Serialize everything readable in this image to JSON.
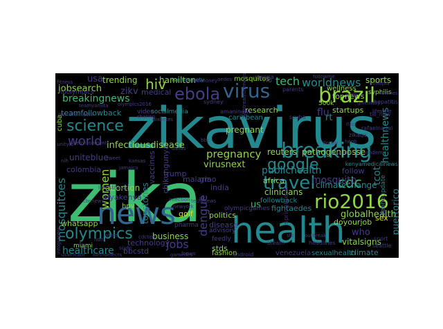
{
  "word_cloud": {
    "background": "#000000",
    "palette": {
      "green": "#3ebc74",
      "teal": "#23898e",
      "lime": "#8fd744",
      "yellow": "#dde318",
      "blue": "#31658e",
      "purple": "#433e85",
      "violet": "#482374"
    },
    "words": [
      {
        "text": "zikavirus",
        "color": "teal"
      },
      {
        "text": "zika",
        "color": "green"
      },
      {
        "text": "health",
        "color": "teal"
      },
      {
        "text": "news",
        "color": "blue"
      },
      {
        "text": "women",
        "color": "lime"
      },
      {
        "text": "brazil",
        "color": "lime"
      },
      {
        "text": "virus",
        "color": "blue"
      },
      {
        "text": "breaking",
        "color": "teal"
      },
      {
        "text": "rio2016",
        "color": "lime"
      },
      {
        "text": "travel",
        "color": "teal"
      },
      {
        "text": "ebola",
        "color": "purple"
      },
      {
        "text": "science",
        "color": "teal"
      },
      {
        "text": "olympics",
        "color": "teal"
      },
      {
        "text": "google",
        "color": "teal"
      },
      {
        "text": "mosquitoes",
        "color": "teal"
      },
      {
        "text": "hiv",
        "color": "lime"
      },
      {
        "text": "cdc",
        "color": "green"
      },
      {
        "text": "world",
        "color": "purple"
      },
      {
        "text": "publichealth",
        "color": "teal"
      },
      {
        "text": "jobs",
        "color": "purple"
      },
      {
        "text": "dengue",
        "color": "purple"
      },
      {
        "text": "tech",
        "color": "green"
      },
      {
        "text": "worldnews",
        "color": "teal"
      },
      {
        "text": "breakingnews",
        "color": "green"
      },
      {
        "text": "pregnancy",
        "color": "lime"
      },
      {
        "text": "mosquito",
        "color": "purple"
      },
      {
        "text": "healthcare",
        "color": "teal"
      },
      {
        "text": "infectiousdisease",
        "color": "lime"
      },
      {
        "text": "virusnext",
        "color": "lime"
      },
      {
        "text": "tcot",
        "color": "teal"
      },
      {
        "text": "globalhealth",
        "color": "lime"
      },
      {
        "text": "usa",
        "color": "purple"
      },
      {
        "text": "trending",
        "color": "lime"
      },
      {
        "text": "hamilton",
        "color": "lime"
      },
      {
        "text": "sports",
        "color": "lime"
      },
      {
        "text": "jobsearch",
        "color": "lime"
      },
      {
        "text": "zikv",
        "color": "purple"
      },
      {
        "text": "medical",
        "color": "purple"
      },
      {
        "text": "teamfollowback",
        "color": "teal"
      },
      {
        "text": "reuters",
        "color": "lime"
      },
      {
        "text": "pathogenposse",
        "color": "lime"
      },
      {
        "text": "flu",
        "color": "purple"
      },
      {
        "text": "pregnant",
        "color": "lime"
      },
      {
        "text": "research",
        "color": "lime"
      },
      {
        "text": "topnews",
        "color": "lime"
      },
      {
        "text": "startups",
        "color": "lime"
      },
      {
        "text": "healthnews",
        "color": "teal"
      },
      {
        "text": "unitebluе",
        "color": "purple"
      },
      {
        "text": "colombia",
        "color": "purple"
      },
      {
        "text": "vaccines",
        "color": "purple"
      },
      {
        "text": "chikungunya",
        "color": "purple"
      },
      {
        "text": "malaria",
        "color": "purple"
      },
      {
        "text": "africa",
        "color": "lime"
      },
      {
        "text": "clinicians",
        "color": "lime"
      },
      {
        "text": "climatechange",
        "color": "teal"
      },
      {
        "text": "follow",
        "color": "purple"
      },
      {
        "text": "topstories",
        "color": "teal"
      },
      {
        "text": "abortion",
        "color": "lime"
      },
      {
        "text": "afyakenya",
        "color": "purple"
      },
      {
        "text": "golf",
        "color": "yellow"
      },
      {
        "text": "politics",
        "color": "lime"
      },
      {
        "text": "fightaedes",
        "color": "teal"
      },
      {
        "text": "doyourjob",
        "color": "lime"
      },
      {
        "text": "puertorico",
        "color": "teal"
      },
      {
        "text": "whatsapp",
        "color": "lime"
      },
      {
        "text": "business",
        "color": "lime"
      },
      {
        "text": "technology",
        "color": "purple"
      },
      {
        "text": "bbcstd",
        "color": "purple"
      },
      {
        "text": "disease",
        "color": "purple"
      },
      {
        "text": "stds",
        "color": "lime"
      },
      {
        "text": "who",
        "color": "purple"
      },
      {
        "text": "vitalsigns",
        "color": "lime"
      },
      {
        "text": "climate",
        "color": "teal"
      },
      {
        "text": "fashion",
        "color": "lime"
      },
      {
        "text": "venezuela",
        "color": "purple"
      },
      {
        "text": "sexualhealth",
        "color": "teal"
      },
      {
        "text": "sex",
        "color": "yellow"
      },
      {
        "text": "trump",
        "color": "purple"
      },
      {
        "text": "india",
        "color": "purple"
      },
      {
        "text": "gmo",
        "color": "purple"
      },
      {
        "text": "us",
        "color": "green"
      },
      {
        "text": "rt",
        "color": "teal"
      },
      {
        "text": "hpv",
        "color": "lime"
      },
      {
        "text": "mosquitos",
        "color": "lime"
      },
      {
        "text": "rio",
        "color": "purple"
      },
      {
        "text": "caribbean",
        "color": "teal"
      },
      {
        "text": "wellness",
        "color": "lime"
      },
      {
        "text": "cuba",
        "color": "lime"
      },
      {
        "text": "video",
        "color": "purple"
      },
      {
        "text": "socialmedia",
        "color": "teal"
      },
      {
        "text": "miami",
        "color": "lime"
      },
      {
        "text": "latestnews",
        "color": "purple"
      },
      {
        "text": "pharma",
        "color": "purple"
      },
      {
        "text": "advisory",
        "color": "purple"
      },
      {
        "text": "feedly",
        "color": "purple"
      },
      {
        "text": "android",
        "color": "purple"
      },
      {
        "text": "steam",
        "color": "purple"
      },
      {
        "text": "headlines",
        "color": "purple"
      },
      {
        "text": "nlu",
        "color": "purple"
      },
      {
        "text": "500k",
        "color": "lime"
      },
      {
        "text": "sebheupdate",
        "color": "teal"
      },
      {
        "text": "rafaelnadal",
        "color": "purple"
      },
      {
        "text": "kenyamedicalnews",
        "color": "teal"
      },
      {
        "text": "amaninews",
        "color": "purple"
      },
      {
        "text": "livemixmetv",
        "color": "teal"
      },
      {
        "text": "followback",
        "color": "teal"
      },
      {
        "text": "olympicgames",
        "color": "purple"
      },
      {
        "text": "seattle",
        "color": "purple"
      },
      {
        "text": "sport",
        "color": "purple"
      },
      {
        "text": "syphilis",
        "color": "lime"
      },
      {
        "text": "springbreak",
        "color": "violet"
      },
      {
        "text": "nigeria",
        "color": "purple"
      },
      {
        "text": "hepatitis",
        "color": "purple"
      },
      {
        "text": "generalnews",
        "color": "purple"
      },
      {
        "text": "unityld",
        "color": "purple"
      },
      {
        "text": "sydney",
        "color": "purple"
      },
      {
        "text": "rioolympics",
        "color": "purple"
      },
      {
        "text": "fitness",
        "color": "purple"
      },
      {
        "text": "finance",
        "color": "purple"
      },
      {
        "text": "money",
        "color": "purple"
      },
      {
        "text": "aedes",
        "color": "purple"
      },
      {
        "text": "parents",
        "color": "purple"
      },
      {
        "text": "prep",
        "color": "purple"
      },
      {
        "text": "giveaway",
        "color": "purple"
      },
      {
        "text": "lifestyle",
        "color": "purple"
      },
      {
        "text": "infection",
        "color": "purple"
      },
      {
        "text": "newyork",
        "color": "purple"
      },
      {
        "text": "techtnews",
        "color": "purple"
      },
      {
        "text": "gamedev",
        "color": "purple"
      },
      {
        "text": "latest",
        "color": "purple"
      },
      {
        "text": "bbc",
        "color": "purple"
      },
      {
        "text": "doctor",
        "color": "purple"
      },
      {
        "text": "livestreamthenews",
        "color": "purple"
      },
      {
        "text": "education",
        "color": "purple"
      },
      {
        "text": "fnews",
        "color": "purple"
      },
      {
        "text": "zikaqa",
        "color": "purple"
      },
      {
        "text": "hepb",
        "color": "purple"
      },
      {
        "text": "till_now",
        "color": "purple"
      },
      {
        "text": "sfb",
        "color": "purple"
      },
      {
        "text": "scuba",
        "color": "purple"
      },
      {
        "text": "ethiopia",
        "color": "purple"
      },
      {
        "text": "followme",
        "color": "purple"
      },
      {
        "text": "environment",
        "color": "purple"
      },
      {
        "text": "nvtimes",
        "color": "purple"
      },
      {
        "text": "pandemic",
        "color": "purple"
      },
      {
        "text": "usafricabf",
        "color": "purple"
      },
      {
        "text": "infographic",
        "color": "purple"
      },
      {
        "text": "nih",
        "color": "purple"
      },
      {
        "text": "cdctips",
        "color": "purple"
      },
      {
        "text": "outbreak",
        "color": "purple"
      },
      {
        "text": "ndtv",
        "color": "purple"
      },
      {
        "text": "diabetes",
        "color": "purple"
      },
      {
        "text": "teamyamita",
        "color": "purple"
      },
      {
        "text": "olympics2016",
        "color": "purple"
      },
      {
        "text": "dallas",
        "color": "purple"
      },
      {
        "text": "tweet",
        "color": "purple"
      },
      {
        "text": "kansas",
        "color": "purple"
      },
      {
        "text": "sharing",
        "color": "purple"
      },
      {
        "text": "jamaica",
        "color": "purple"
      },
      {
        "text": "cbcnews",
        "color": "purple"
      },
      {
        "text": "uk",
        "color": "purple"
      },
      {
        "text": "scyhi",
        "color": "purple"
      },
      {
        "text": "birthdefects",
        "color": "purple"
      }
    ]
  }
}
